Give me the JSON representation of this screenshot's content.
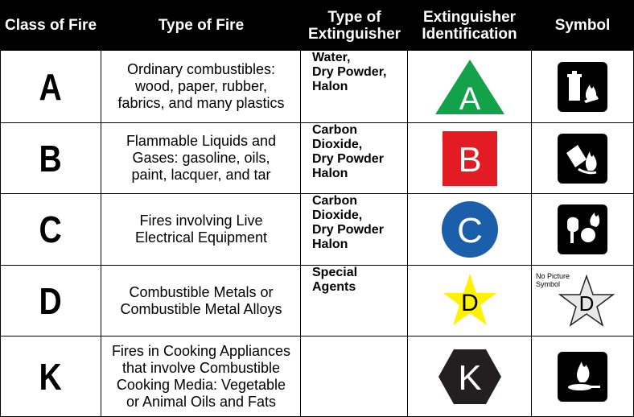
{
  "headers": {
    "class": "Class of Fire",
    "type": "Type of Fire",
    "extinguisher": [
      "Type of",
      "Extinguisher"
    ],
    "identification": [
      "Extinguisher",
      "Identification"
    ],
    "symbol": "Symbol"
  },
  "rows": [
    {
      "class": "A",
      "type_lines": [
        "Ordinary combustibles:",
        "wood, paper, rubber,",
        "fabrics, and many plastics"
      ],
      "ext_lines": [
        "Water,",
        "Dry Powder,",
        "Halon"
      ],
      "id_letter": "A",
      "id_shape": "triangle",
      "id_color": "#13A24A",
      "symbol_icon": "trash-fire-icon"
    },
    {
      "class": "B",
      "type_lines": [
        "Flammable Liquids and",
        "Gases: gasoline, oils,",
        "paint, lacquer, and tar"
      ],
      "ext_lines": [
        "Carbon",
        "Dioxide,",
        "Dry Powder",
        "Halon"
      ],
      "id_letter": "B",
      "id_shape": "square",
      "id_color": "#E31B23",
      "symbol_icon": "liquid-fire-icon"
    },
    {
      "class": "C",
      "type_lines": [
        "Fires involving Live",
        "Electrical Equipment"
      ],
      "ext_lines": [
        "Carbon",
        "Dioxide,",
        "Dry Powder",
        "Halon"
      ],
      "id_letter": "C",
      "id_shape": "circle",
      "id_color": "#1B5FAA",
      "symbol_icon": "electrical-fire-icon"
    },
    {
      "class": "D",
      "type_lines": [
        "Combustible Metals or",
        "Combustible Metal Alloys"
      ],
      "ext_lines": [
        "Special",
        "Agents"
      ],
      "id_letter": "D",
      "id_shape": "star",
      "id_color": "#FFF200",
      "symbol_note": [
        "No Picture",
        "Symbol"
      ],
      "symbol_letter": "D",
      "symbol_icon": "star-icon"
    },
    {
      "class": "K",
      "type_lines": [
        "Fires in Cooking Appliances",
        "that involve Combustible",
        "Cooking Media: Vegetable",
        "or Animal Oils and Fats"
      ],
      "ext_lines": [],
      "id_letter": "K",
      "id_shape": "hexagon",
      "id_color": "#231F20",
      "symbol_icon": "pan-fire-icon"
    }
  ]
}
